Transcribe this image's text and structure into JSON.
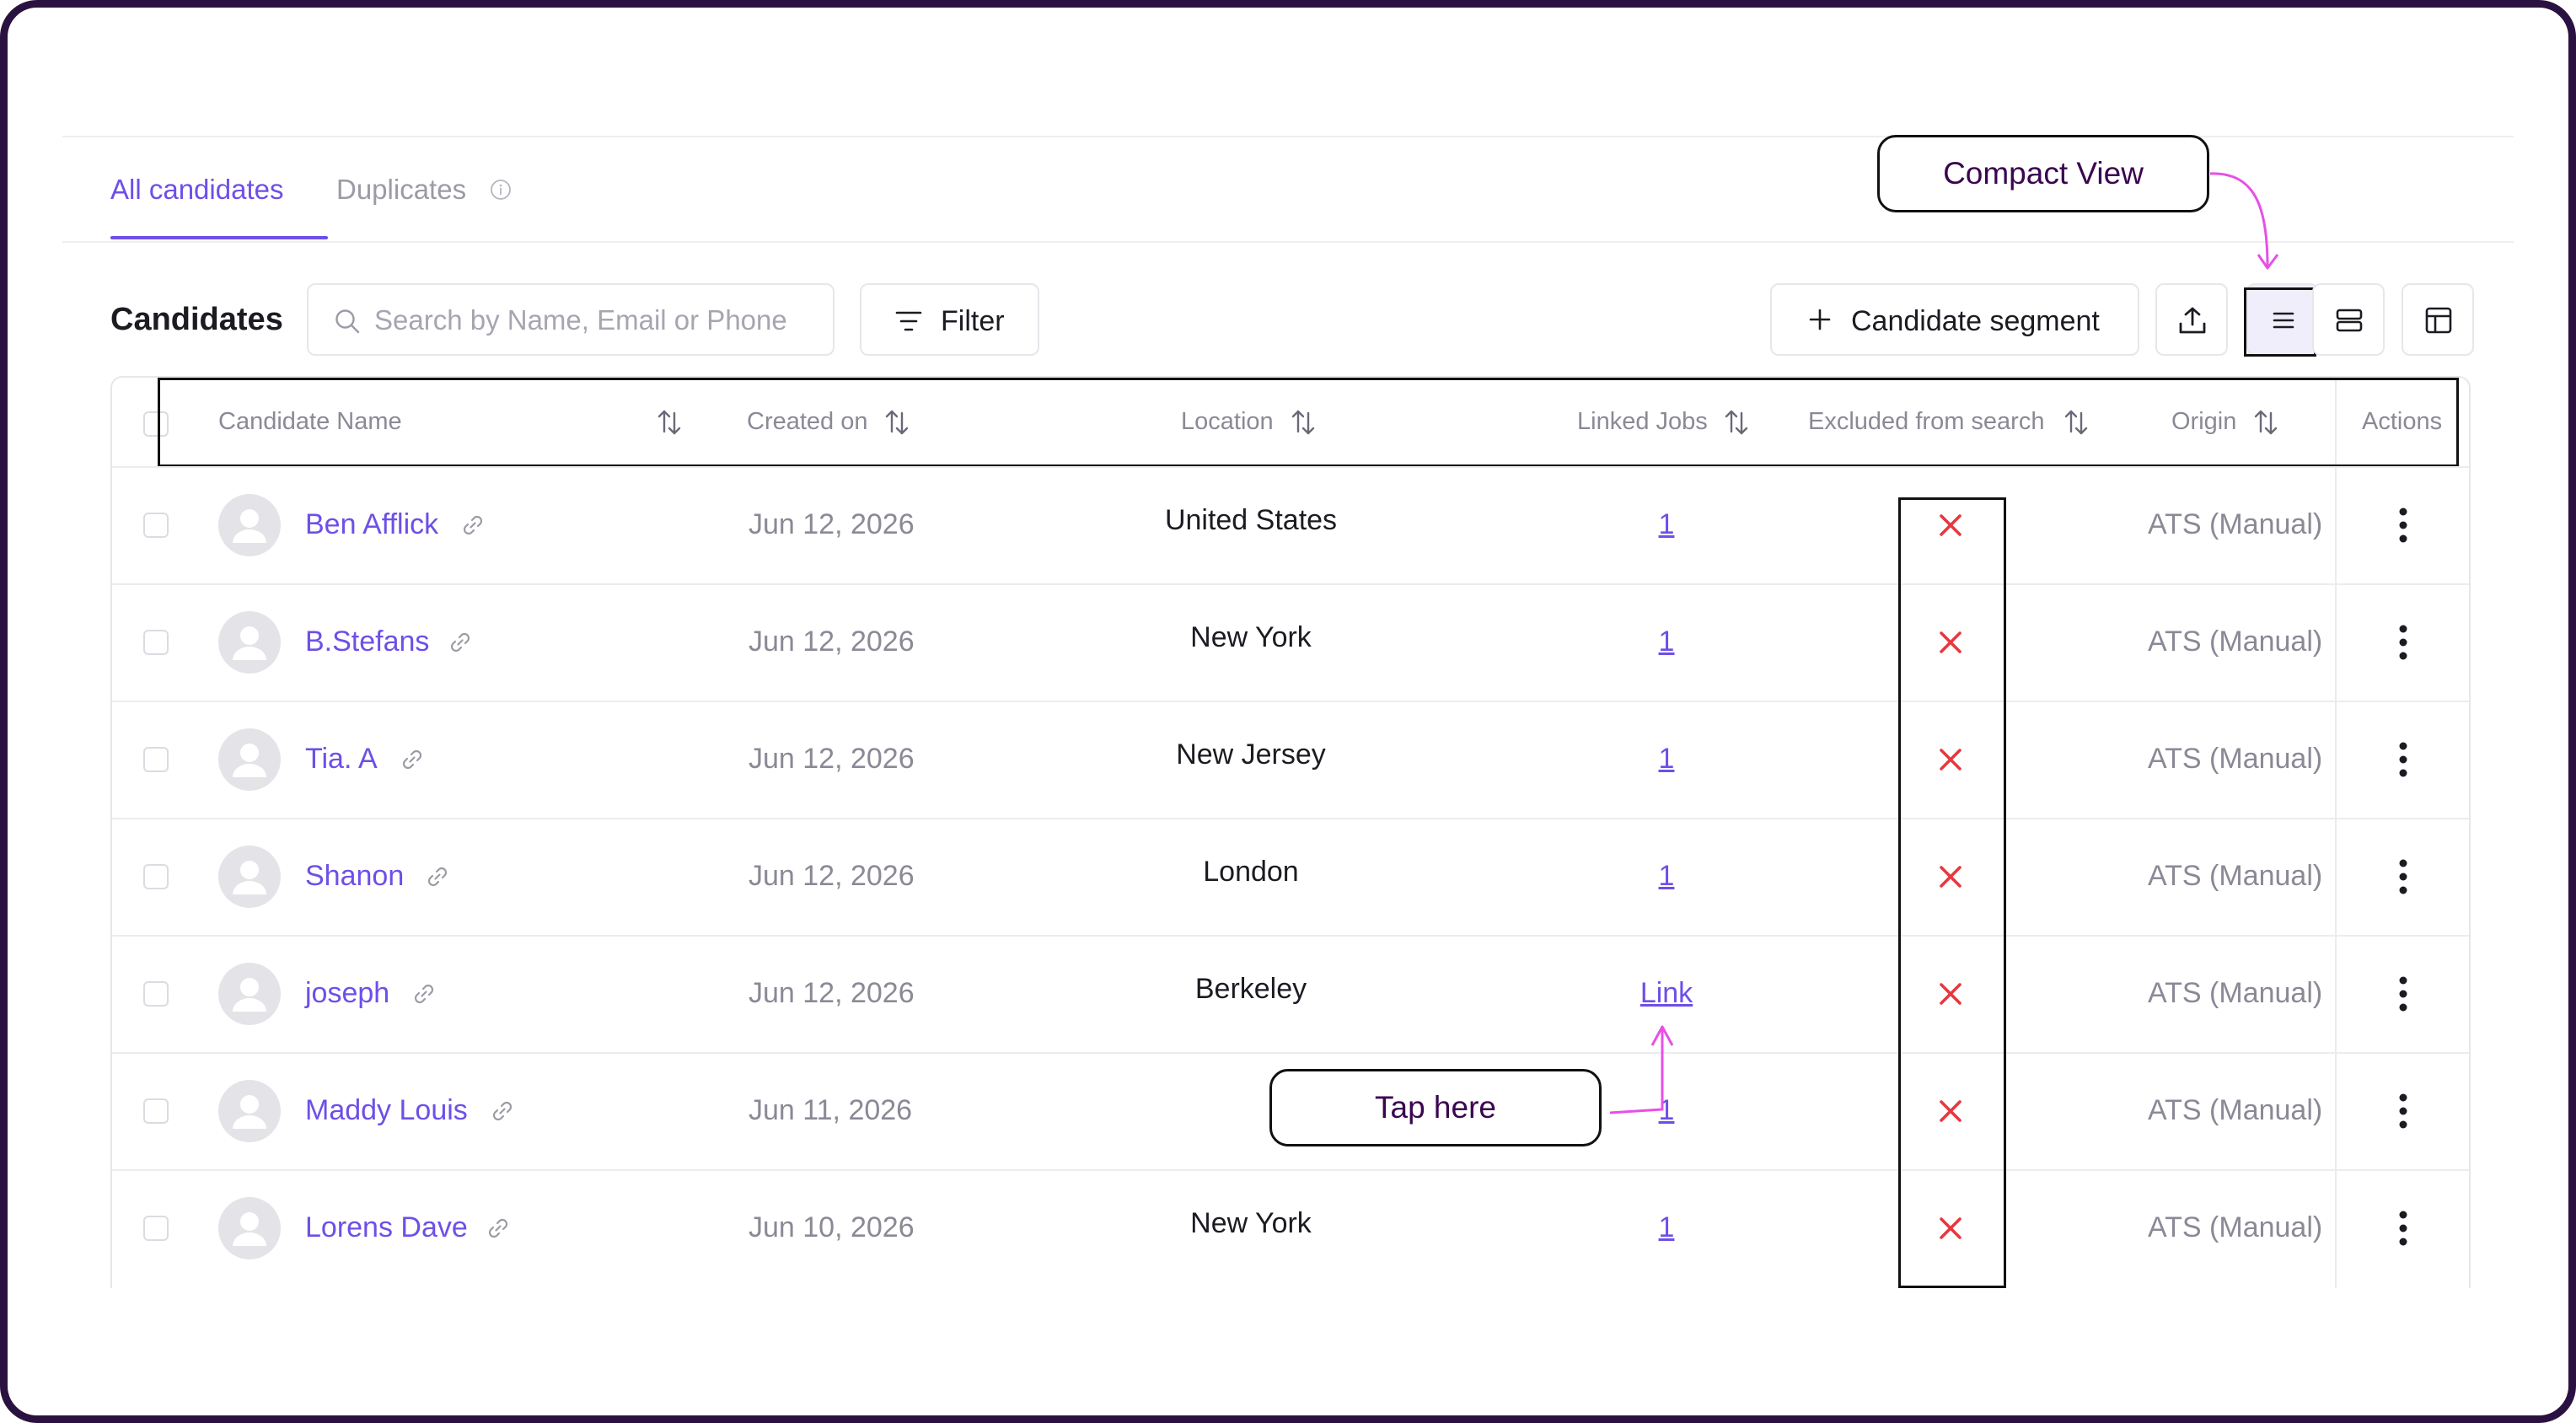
{
  "tabs": [
    {
      "label": "All candidates",
      "active": true
    },
    {
      "label": "Duplicates",
      "active": false
    }
  ],
  "toolbar": {
    "heading": "Candidates",
    "search_placeholder": "Search by Name, Email or Phone",
    "filter_label": "Filter",
    "segment_label": "Candidate segment"
  },
  "table": {
    "columns": {
      "name": "Candidate Name",
      "created": "Created on",
      "location": "Location",
      "linked_jobs": "Linked Jobs",
      "excluded": "Excluded from search",
      "origin": "Origin",
      "actions": "Actions"
    },
    "rows": [
      {
        "name": "Ben Afflick",
        "created": "Jun 12, 2026",
        "location": "United States",
        "linked_jobs": "1",
        "excluded": false,
        "origin": "ATS (Manual)"
      },
      {
        "name": "B.Stefans",
        "created": "Jun 12, 2026",
        "location": "New York",
        "linked_jobs": "1",
        "excluded": false,
        "origin": "ATS (Manual)"
      },
      {
        "name": "Tia. A",
        "created": "Jun 12, 2026",
        "location": "New Jersey",
        "linked_jobs": "1",
        "excluded": false,
        "origin": "ATS (Manual)"
      },
      {
        "name": "Shanon",
        "created": "Jun 12, 2026",
        "location": "London",
        "linked_jobs": "1",
        "excluded": false,
        "origin": "ATS (Manual)"
      },
      {
        "name": "joseph",
        "created": "Jun 12, 2026",
        "location": "Berkeley",
        "linked_jobs": "Link",
        "excluded": false,
        "origin": "ATS (Manual)"
      },
      {
        "name": "Maddy Louis",
        "created": "Jun 11, 2026",
        "location": "",
        "linked_jobs": "1",
        "excluded": false,
        "origin": "ATS (Manual)"
      },
      {
        "name": "Lorens Dave",
        "created": "Jun 10, 2026",
        "location": "New York",
        "linked_jobs": "1",
        "excluded": false,
        "origin": "ATS (Manual)"
      }
    ]
  },
  "annotations": {
    "compact_view": "Compact View",
    "tap_here": "Tap here"
  },
  "icons": {
    "tab_info": "info-icon",
    "search": "search-icon",
    "filter": "filter-icon",
    "segment": "plus-icon",
    "export": "upload-icon",
    "compact_view": "list-icon",
    "card_view": "rows-icon",
    "columns": "columns-icon",
    "sort": "sort-icon",
    "name_link": "link-icon",
    "excluded": "x-icon",
    "actions": "kebab-icon",
    "avatar": "user-icon"
  },
  "colors": {
    "accent": "#6e4fe8",
    "excluded_x": "#e8383d",
    "annotation_arrow": "#e84fe6",
    "muted_text": "#8b8996",
    "frame": "#2a1240"
  }
}
